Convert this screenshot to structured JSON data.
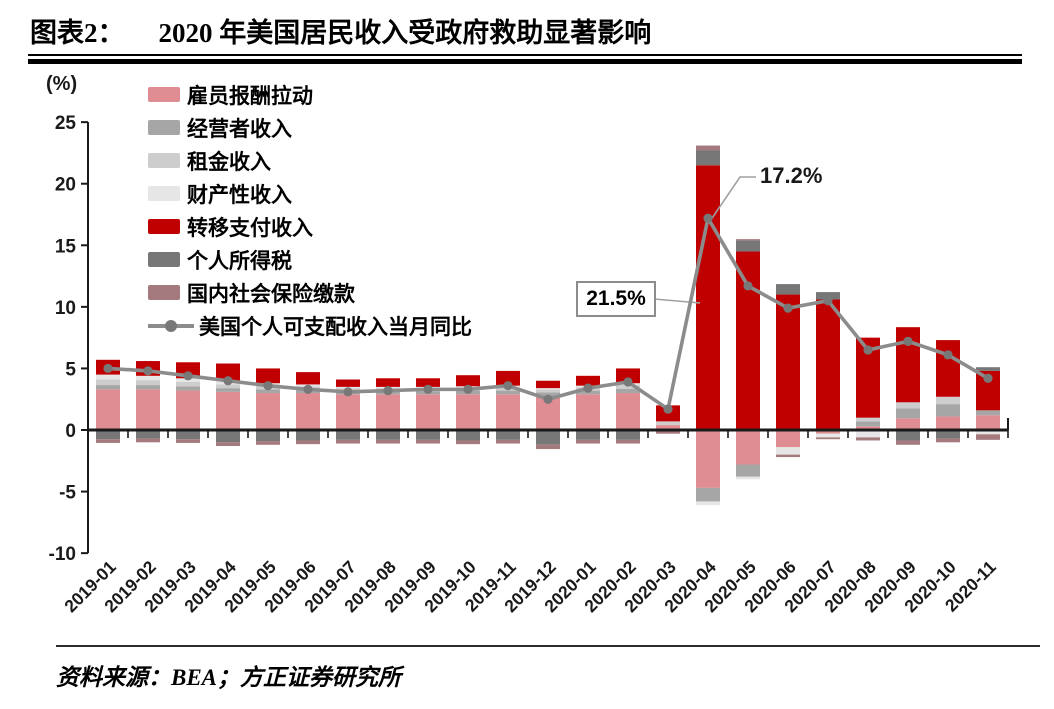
{
  "figure": {
    "label": "图表2：",
    "title": "2020 年美国居民收入受政府救助显著影响",
    "unit_label": "(%)",
    "source": "资料来源：BEA；方正证券研究所"
  },
  "annotations": {
    "line_peak": "17.2%",
    "transfer_peak": "21.5%"
  },
  "chart_data": {
    "type": "bar",
    "subtype": "stacked-bar-with-line",
    "title": "2020 年美国居民收入受政府救助显著影响",
    "ylabel": "(%)",
    "ylim": [
      -10,
      25
    ],
    "yticks": [
      25,
      20,
      15,
      10,
      5,
      0,
      -5,
      -10
    ],
    "grid": false,
    "legend_position": "upper-left-inside",
    "categories": [
      "2019-01",
      "2019-02",
      "2019-03",
      "2019-04",
      "2019-05",
      "2019-06",
      "2019-07",
      "2019-08",
      "2019-09",
      "2019-10",
      "2019-11",
      "2019-12",
      "2020-01",
      "2020-02",
      "2020-03",
      "2020-04",
      "2020-05",
      "2020-06",
      "2020-07",
      "2020-08",
      "2020-09",
      "2020-10",
      "2020-11"
    ],
    "series": [
      {
        "name": "雇员报酬拉动",
        "color": "#df8d92",
        "values": [
          3.3,
          3.3,
          3.2,
          3.1,
          3.0,
          3.0,
          2.9,
          2.9,
          2.9,
          2.9,
          2.9,
          2.75,
          2.9,
          3.0,
          0.4,
          -4.7,
          -2.8,
          -1.4,
          -0.3,
          0.3,
          0.95,
          1.1,
          1.2
        ]
      },
      {
        "name": "经营者收入",
        "color": "#a6a6a6",
        "values": [
          0.35,
          0.35,
          0.35,
          0.3,
          0.3,
          0.3,
          0.25,
          0.25,
          0.25,
          0.3,
          0.3,
          0.3,
          0.3,
          0.35,
          0,
          -1.1,
          -1.0,
          0,
          0,
          0.4,
          0.8,
          1.0,
          0.4
        ]
      },
      {
        "name": "租金收入",
        "color": "#cdcdcd",
        "values": [
          0.45,
          0.4,
          0.35,
          0.3,
          0.3,
          0.25,
          0.25,
          0.25,
          0.25,
          0.25,
          0.25,
          0.25,
          0.25,
          0.3,
          0.3,
          0,
          0,
          0,
          0,
          0.3,
          0.5,
          0.6,
          0
        ]
      },
      {
        "name": "财产性收入",
        "color": "#e6e6e6",
        "values": [
          0.4,
          0.35,
          0.3,
          0.3,
          0.2,
          0.15,
          0.1,
          0.1,
          0.1,
          0.1,
          0.15,
          0.1,
          0.15,
          0.15,
          0,
          -0.3,
          -0.2,
          -0.6,
          -0.3,
          -0.6,
          0,
          0,
          -0.35
        ]
      },
      {
        "name": "转移支付收入",
        "color": "#c00000",
        "values": [
          1.2,
          1.2,
          1.3,
          1.4,
          1.2,
          1.0,
          0.6,
          0.7,
          0.7,
          0.9,
          1.2,
          0.6,
          0.8,
          1.2,
          1.3,
          21.5,
          14.5,
          11.0,
          10.6,
          6.5,
          6.1,
          4.6,
          3.2
        ]
      },
      {
        "name": "个人所得税",
        "color": "#777777",
        "values": [
          -0.75,
          -0.7,
          -0.75,
          -1.0,
          -0.9,
          -0.85,
          -0.8,
          -0.8,
          -0.8,
          -0.85,
          -0.8,
          -1.2,
          -0.8,
          -0.8,
          0,
          1.2,
          0.9,
          0.85,
          0.6,
          0,
          -0.85,
          -0.7,
          0.3
        ]
      },
      {
        "name": "国内社会保险缴款",
        "color": "#a57a7e",
        "values": [
          -0.3,
          -0.3,
          -0.3,
          -0.3,
          -0.3,
          -0.3,
          -0.3,
          -0.3,
          -0.3,
          -0.3,
          -0.3,
          -0.35,
          -0.3,
          -0.3,
          -0.3,
          0.4,
          0.1,
          -0.2,
          -0.15,
          -0.25,
          -0.35,
          -0.3,
          -0.45
        ]
      }
    ],
    "line_series": {
      "name": "美国个人可支配收入当月同比",
      "color": "#8c8c8c",
      "marker_color": "#787878",
      "values": [
        5.0,
        4.8,
        4.4,
        4.0,
        3.6,
        3.3,
        3.1,
        3.2,
        3.3,
        3.3,
        3.6,
        2.5,
        3.4,
        3.9,
        1.7,
        17.2,
        11.7,
        9.9,
        10.5,
        6.5,
        7.2,
        6.1,
        4.2
      ]
    },
    "annotated_points": [
      {
        "category": "2020-04",
        "series": "美国个人可支配收入当月同比",
        "label": "17.2%"
      },
      {
        "category": "2020-04",
        "series": "转移支付收入",
        "label": "21.5%"
      }
    ]
  }
}
